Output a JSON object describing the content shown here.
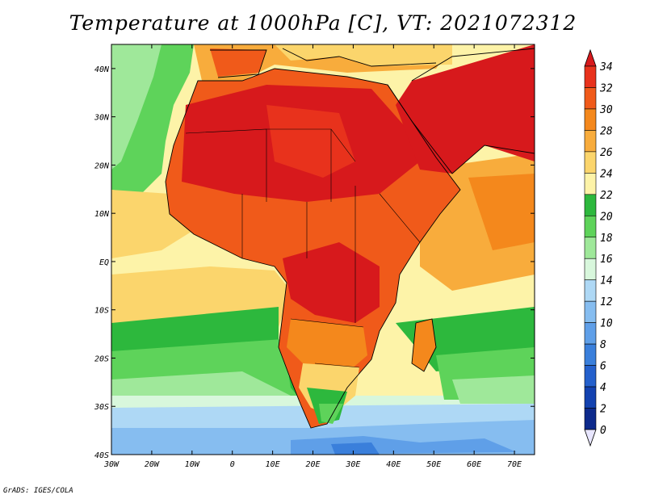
{
  "title": "Temperature at 1000hPa [C], VT: 2021072312",
  "credit": "GrADS: IGES/COLA",
  "map": {
    "type": "filled-contour",
    "variable": "Temperature at 1000hPa",
    "units": "C",
    "valid_time": "2021072312",
    "lon_range": [
      -30,
      75
    ],
    "lat_range": [
      -40,
      45
    ],
    "lon_ticks": [
      "30W",
      "20W",
      "10W",
      "0",
      "10E",
      "20E",
      "30E",
      "40E",
      "50E",
      "60E",
      "70E"
    ],
    "lat_ticks": [
      "40N",
      "30N",
      "20N",
      "10N",
      "EQ",
      "10S",
      "20S",
      "30S",
      "40S"
    ]
  },
  "colorbar": {
    "levels": [
      "34",
      "32",
      "30",
      "28",
      "26",
      "24",
      "22",
      "20",
      "18",
      "16",
      "14",
      "12",
      "10",
      "8",
      "6",
      "4",
      "2",
      "0"
    ],
    "colors_top_to_bottom": [
      "#d7191c",
      "#e8321c",
      "#f05a1a",
      "#f4881c",
      "#f8ac3c",
      "#fbd56c",
      "#fdf3a8",
      "#2db83d",
      "#5ed35a",
      "#9fe89a",
      "#d8f7dc",
      "#aed8f5",
      "#86bdf0",
      "#5f9fe8",
      "#3a7fdb",
      "#2460cc",
      "#1342b0",
      "#0d2a8c",
      "#0a1460"
    ]
  }
}
